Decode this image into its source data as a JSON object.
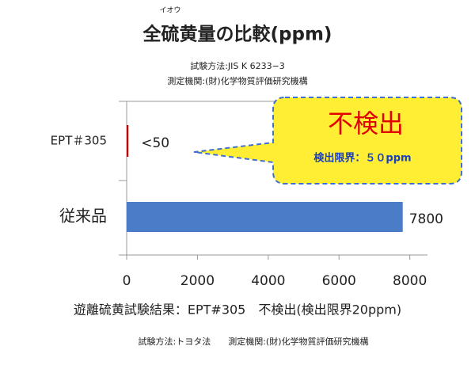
{
  "chart_data": {
    "type": "bar",
    "orientation": "horizontal",
    "title": "全硫黄量の比較(ppm)",
    "title_ruby": "イオウ",
    "subtitle": [
      "試験方法:JIS K 6233−3",
      "測定機関:(財)化学物質評価研究機構"
    ],
    "categories": [
      "EPT＃305",
      "従来品"
    ],
    "values": [
      50,
      7800
    ],
    "value_labels": [
      "<50",
      "7800"
    ],
    "colors": [
      "#c00000",
      "#4a7cc7"
    ],
    "xlim": [
      0,
      8500
    ],
    "xticks": [
      0,
      2000,
      4000,
      6000,
      8000
    ],
    "annotation": {
      "title": "不検出",
      "text": "検出限界：５０ppm"
    },
    "notes": [
      "遊離硫黄試験結果：EPT#305　不検出(検出限界20ppm)",
      "試験方法:トヨタ法　　測定機関:(財)化学物質評価研究機構"
    ]
  }
}
